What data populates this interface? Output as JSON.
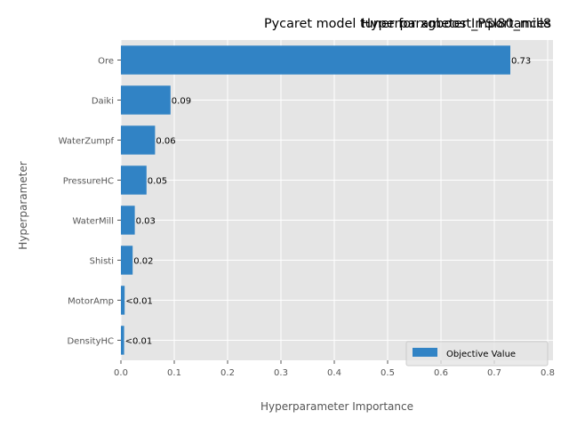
{
  "titles": [
    "Hyperparameter Importances",
    "Pycaret model tuner for xgboost_PSI80_mill8"
  ],
  "chart_data": {
    "type": "bar",
    "orientation": "horizontal",
    "categories": [
      "Ore",
      "Daiki",
      "WaterZumpf",
      "PressureHC",
      "WaterMill",
      "Shisti",
      "MotorAmp",
      "DensityHC"
    ],
    "series": [
      {
        "name": "Objective Value",
        "values": [
          0.73,
          0.093,
          0.064,
          0.048,
          0.026,
          0.022,
          0.007,
          0.006
        ],
        "labels": [
          "0.73",
          "0.09",
          "0.06",
          "0.05",
          "0.03",
          "0.02",
          "<0.01",
          "<0.01"
        ]
      }
    ],
    "xlabel": "Hyperparameter Importance",
    "ylabel": "Hyperparameter",
    "xlim": [
      0,
      0.81
    ],
    "xticks": [
      "0.0",
      "0.1",
      "0.2",
      "0.3",
      "0.4",
      "0.5",
      "0.6",
      "0.7",
      "0.8"
    ],
    "grid": true,
    "legend_position": "lower-right",
    "colors": {
      "bar": "#3183c5",
      "background": "#e5e5e5",
      "grid": "#ffffff"
    }
  }
}
